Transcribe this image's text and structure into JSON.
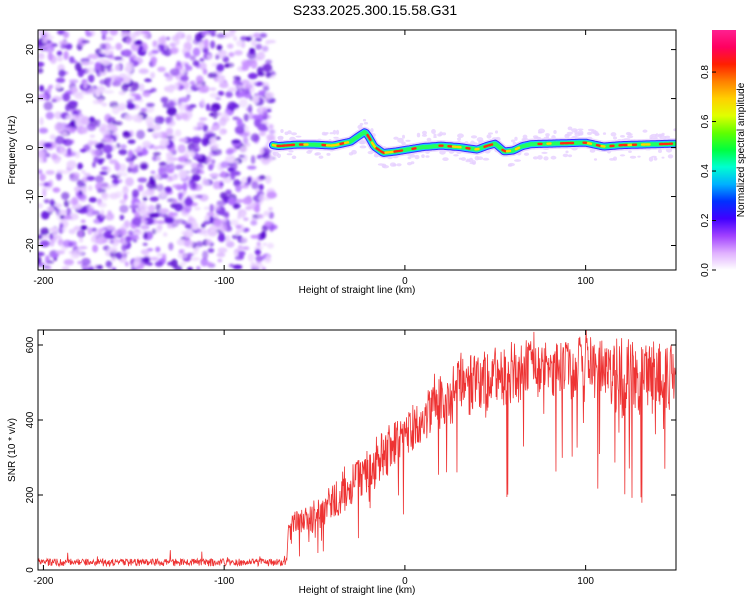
{
  "title": "S233.2025.300.15.58.G31",
  "colors": {
    "snr_line": "#ee3333",
    "axes": "#000000",
    "background": "#ffffff"
  },
  "chart_data": [
    {
      "type": "heatmap",
      "title": "S233.2025.300.15.58.G31",
      "xlabel": "Height of straight line (km)",
      "ylabel": "Frequency (Hz)",
      "xlim": [
        -203,
        150
      ],
      "ylim": [
        -25,
        24
      ],
      "xticks": [
        -200,
        -100,
        0,
        100
      ],
      "xtick_labels": [
        "-200",
        "-100",
        "0",
        "100"
      ],
      "yticks": [
        20,
        10,
        0,
        -10,
        -20
      ],
      "ytick_labels": [
        "20",
        "10",
        "0",
        "-10",
        "-20"
      ],
      "noise_region_x": [
        -203,
        -73
      ],
      "ridge": {
        "x": [
          -73,
          -70,
          -60,
          -50,
          -40,
          -30,
          -25,
          -22,
          -20,
          -17,
          -12,
          -5,
          0,
          10,
          20,
          30,
          40,
          45,
          50,
          55,
          60,
          65,
          70,
          80,
          90,
          100,
          110,
          120,
          130,
          140,
          150
        ],
        "y": [
          0.5,
          0.3,
          0.6,
          0.6,
          0.4,
          1.2,
          2.5,
          3.2,
          2.2,
          0.2,
          -1.1,
          -0.8,
          -0.5,
          0.1,
          0.4,
          0.1,
          -0.4,
          0.3,
          0.8,
          -0.8,
          -0.6,
          0.3,
          0.7,
          0.8,
          0.9,
          1.0,
          0.2,
          0.5,
          0.6,
          0.7,
          0.8
        ]
      },
      "colorbar": {
        "label": "Normalized spectral amplitude",
        "range": [
          0,
          0.97
        ],
        "ticks": [
          0,
          0.2,
          0.4,
          0.6,
          0.8
        ],
        "tick_labels": [
          "0.0",
          "0.2",
          "0.4",
          "0.6",
          "0.8"
        ],
        "stops": [
          "#ffffff",
          "#e0b0ff",
          "#a040ff",
          "#4000ff",
          "#0030ff",
          "#00b0ff",
          "#00ffd0",
          "#00ff40",
          "#60ff00",
          "#e0ff00",
          "#ffd000",
          "#ff8000",
          "#ff2000",
          "#ff0060",
          "#ff2090"
        ]
      }
    },
    {
      "type": "line",
      "xlabel": "Height of straight line (km)",
      "ylabel": "SNR (10 * v/v)",
      "xlim": [
        -203,
        150
      ],
      "ylim": [
        0,
        640
      ],
      "xticks": [
        -200,
        -100,
        0,
        100
      ],
      "xtick_labels": [
        "-200",
        "-100",
        "0",
        "100"
      ],
      "yticks": [
        0,
        200,
        400,
        600
      ],
      "ytick_labels": [
        "0",
        "200",
        "400",
        "600"
      ],
      "series": [
        {
          "name": "SNR",
          "envelope_x": [
            -203,
            -66,
            -64,
            -60,
            -50,
            -40,
            -30,
            -20,
            -10,
            0,
            10,
            20,
            30,
            40,
            50,
            60,
            70,
            80,
            90,
            100,
            110,
            120,
            130,
            140,
            150
          ],
          "envelope_lower": [
            10,
            10,
            60,
            80,
            100,
            120,
            170,
            210,
            240,
            280,
            330,
            370,
            400,
            420,
            430,
            440,
            450,
            450,
            440,
            440,
            420,
            400,
            400,
            420,
            430
          ],
          "envelope_upper": [
            30,
            30,
            140,
            160,
            180,
            230,
            280,
            330,
            380,
            420,
            470,
            520,
            560,
            580,
            590,
            600,
            610,
            615,
            620,
            630,
            615,
            610,
            610,
            615,
            620
          ]
        }
      ]
    }
  ]
}
